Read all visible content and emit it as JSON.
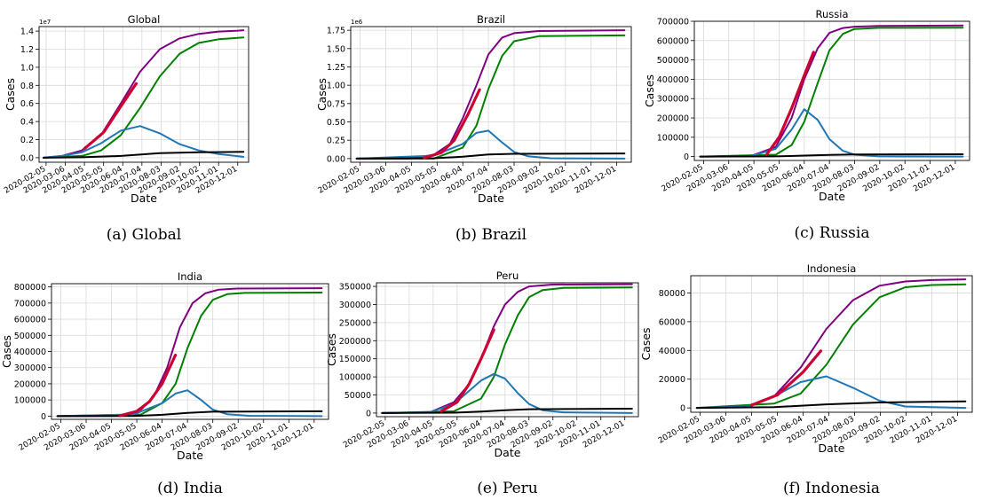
{
  "series_colors": {
    "total": "#800080",
    "recovered": "#008000",
    "active": "#1f77b4",
    "deaths": "#000000",
    "observed": "#cc0033"
  },
  "chart_data": [
    {
      "type": "line",
      "title": "Global",
      "caption": "(a) Global",
      "xlabel": "Date",
      "ylabel": "Cases",
      "scale_note": "1e7",
      "ylim": [
        -0.05,
        1.45
      ],
      "y_ticks": [
        "0.0",
        "0.2",
        "0.4",
        "0.6",
        "0.8",
        "1.0",
        "1.2",
        "1.4"
      ],
      "x_ticks": [
        "2020-02-05",
        "2020-03-06",
        "2020-04-05",
        "2020-05-05",
        "2020-06-04",
        "2020-07-04",
        "2020-08-03",
        "2020-09-02",
        "2020-10-02",
        "2020-11-01",
        "2020-12-01"
      ],
      "grid": true,
      "series": [
        {
          "key": "total",
          "x": [
            "2020-02-01",
            "2020-03-01",
            "2020-04-01",
            "2020-05-01",
            "2020-06-01",
            "2020-07-01",
            "2020-08-01",
            "2020-09-01",
            "2020-10-01",
            "2020-11-01",
            "2020-12-01",
            "2020-12-10"
          ],
          "values": [
            0.0,
            0.02,
            0.08,
            0.25,
            0.6,
            0.95,
            1.2,
            1.32,
            1.37,
            1.395,
            1.405,
            1.41
          ]
        },
        {
          "key": "recovered",
          "x": [
            "2020-02-01",
            "2020-04-01",
            "2020-05-01",
            "2020-06-01",
            "2020-07-01",
            "2020-08-01",
            "2020-09-01",
            "2020-10-01",
            "2020-11-01",
            "2020-12-10"
          ],
          "values": [
            0.0,
            0.02,
            0.08,
            0.25,
            0.55,
            0.9,
            1.15,
            1.27,
            1.31,
            1.33
          ]
        },
        {
          "key": "active",
          "x": [
            "2020-02-01",
            "2020-03-01",
            "2020-04-01",
            "2020-05-01",
            "2020-06-01",
            "2020-07-01",
            "2020-08-01",
            "2020-09-01",
            "2020-10-01",
            "2020-11-01",
            "2020-12-10"
          ],
          "values": [
            0.0,
            0.02,
            0.06,
            0.16,
            0.3,
            0.35,
            0.27,
            0.15,
            0.08,
            0.04,
            0.01
          ]
        },
        {
          "key": "deaths",
          "x": [
            "2020-02-01",
            "2020-04-01",
            "2020-06-01",
            "2020-08-01",
            "2020-10-01",
            "2020-12-10"
          ],
          "values": [
            0.0,
            0.005,
            0.02,
            0.05,
            0.06,
            0.065
          ]
        },
        {
          "key": "observed",
          "x": [
            "2020-04-05",
            "2020-05-05",
            "2020-06-04",
            "2020-06-25"
          ],
          "values": [
            0.1,
            0.28,
            0.6,
            0.82
          ]
        }
      ]
    },
    {
      "type": "line",
      "title": "Brazil",
      "caption": "(b) Brazil",
      "xlabel": "Date",
      "ylabel": "Cases",
      "scale_note": "1e6",
      "ylim": [
        -0.05,
        1.8
      ],
      "y_ticks": [
        "0.00",
        "0.25",
        "0.50",
        "0.75",
        "1.00",
        "1.25",
        "1.50",
        "1.75"
      ],
      "x_ticks": [
        "2020-02-05",
        "2020-03-06",
        "2020-04-05",
        "2020-05-05",
        "2020-06-04",
        "2020-07-04",
        "2020-08-03",
        "2020-09-02",
        "2020-10-02",
        "2020-11-01",
        "2020-12-01"
      ],
      "grid": true,
      "series": [
        {
          "key": "total",
          "x": [
            "2020-02-01",
            "2020-04-01",
            "2020-05-01",
            "2020-05-20",
            "2020-06-04",
            "2020-06-20",
            "2020-07-04",
            "2020-07-20",
            "2020-08-03",
            "2020-09-01",
            "2020-12-10"
          ],
          "values": [
            0.0,
            0.0,
            0.05,
            0.2,
            0.55,
            1.0,
            1.42,
            1.65,
            1.71,
            1.74,
            1.75
          ]
        },
        {
          "key": "recovered",
          "x": [
            "2020-02-01",
            "2020-05-01",
            "2020-06-04",
            "2020-06-20",
            "2020-07-04",
            "2020-07-20",
            "2020-08-03",
            "2020-09-01",
            "2020-12-10"
          ],
          "values": [
            0.0,
            0.0,
            0.15,
            0.45,
            0.95,
            1.4,
            1.6,
            1.67,
            1.68
          ]
        },
        {
          "key": "active",
          "x": [
            "2020-02-01",
            "2020-05-01",
            "2020-06-04",
            "2020-06-20",
            "2020-07-04",
            "2020-07-20",
            "2020-08-03",
            "2020-08-20",
            "2020-09-15",
            "2020-12-10"
          ],
          "values": [
            0.0,
            0.04,
            0.2,
            0.35,
            0.38,
            0.22,
            0.09,
            0.03,
            0.005,
            0.0
          ]
        },
        {
          "key": "deaths",
          "x": [
            "2020-02-01",
            "2020-05-01",
            "2020-06-04",
            "2020-07-04",
            "2020-08-03",
            "2020-12-10"
          ],
          "values": [
            0.0,
            0.005,
            0.025,
            0.055,
            0.065,
            0.07
          ]
        },
        {
          "key": "observed",
          "x": [
            "2020-04-20",
            "2020-05-10",
            "2020-05-25",
            "2020-06-10",
            "2020-06-24"
          ],
          "values": [
            0.01,
            0.08,
            0.25,
            0.6,
            0.95
          ]
        }
      ]
    },
    {
      "type": "line",
      "title": "Russia",
      "caption": "(c) Russia",
      "xlabel": "Date",
      "ylabel": "Cases",
      "ylim": [
        -20000,
        700000
      ],
      "y_ticks": [
        "0",
        "100000",
        "200000",
        "300000",
        "400000",
        "500000",
        "600000",
        "700000"
      ],
      "x_ticks": [
        "2020-02-05",
        "2020-03-06",
        "2020-04-05",
        "2020-05-05",
        "2020-06-04",
        "2020-07-04",
        "2020-08-03",
        "2020-09-02",
        "2020-10-02",
        "2020-11-01",
        "2020-12-01"
      ],
      "grid": true,
      "series": [
        {
          "key": "total",
          "x": [
            "2020-02-01",
            "2020-04-01",
            "2020-05-01",
            "2020-05-20",
            "2020-06-04",
            "2020-06-20",
            "2020-07-04",
            "2020-07-20",
            "2020-08-03",
            "2020-09-01",
            "2020-12-10"
          ],
          "values": [
            0,
            2000,
            50000,
            200000,
            400000,
            560000,
            640000,
            665000,
            672000,
            676000,
            678000
          ]
        },
        {
          "key": "recovered",
          "x": [
            "2020-02-01",
            "2020-05-01",
            "2020-05-20",
            "2020-06-04",
            "2020-06-20",
            "2020-07-04",
            "2020-07-20",
            "2020-08-03",
            "2020-09-01",
            "2020-12-10"
          ],
          "values": [
            0,
            10000,
            60000,
            180000,
            380000,
            550000,
            635000,
            660000,
            666000,
            667000
          ]
        },
        {
          "key": "active",
          "x": [
            "2020-02-01",
            "2020-04-01",
            "2020-05-01",
            "2020-05-20",
            "2020-06-04",
            "2020-06-20",
            "2020-07-04",
            "2020-07-20",
            "2020-08-03",
            "2020-09-01",
            "2020-12-10"
          ],
          "values": [
            0,
            2000,
            40000,
            140000,
            245000,
            190000,
            90000,
            30000,
            10000,
            1000,
            0
          ]
        },
        {
          "key": "deaths",
          "x": [
            "2020-02-01",
            "2020-05-01",
            "2020-06-04",
            "2020-07-04",
            "2020-08-03",
            "2020-12-10"
          ],
          "values": [
            0,
            1000,
            5000,
            9000,
            11000,
            12000
          ]
        },
        {
          "key": "observed",
          "x": [
            "2020-04-20",
            "2020-05-05",
            "2020-05-20",
            "2020-06-04",
            "2020-06-15"
          ],
          "values": [
            10000,
            100000,
            250000,
            420000,
            540000
          ]
        }
      ]
    },
    {
      "type": "line",
      "title": "India",
      "caption": "(d) India",
      "xlabel": "Date",
      "ylabel": "Cases",
      "ylim": [
        -20000,
        820000
      ],
      "y_ticks": [
        "0",
        "100000",
        "200000",
        "300000",
        "400000",
        "500000",
        "600000",
        "700000",
        "800000"
      ],
      "x_ticks": [
        "2020-02-05",
        "2020-03-06",
        "2020-04-05",
        "2020-05-05",
        "2020-06-04",
        "2020-07-04",
        "2020-08-03",
        "2020-09-02",
        "2020-10-02",
        "2020-11-01",
        "2020-12-01"
      ],
      "grid": true,
      "series": [
        {
          "key": "total",
          "x": [
            "2020-02-01",
            "2020-04-20",
            "2020-05-10",
            "2020-05-25",
            "2020-06-10",
            "2020-06-25",
            "2020-07-10",
            "2020-07-25",
            "2020-08-10",
            "2020-09-01",
            "2020-12-10"
          ],
          "values": [
            0,
            2000,
            40000,
            120000,
            300000,
            550000,
            700000,
            760000,
            783000,
            790000,
            792000
          ]
        },
        {
          "key": "recovered",
          "x": [
            "2020-02-01",
            "2020-05-10",
            "2020-06-04",
            "2020-06-20",
            "2020-07-04",
            "2020-07-20",
            "2020-08-03",
            "2020-08-20",
            "2020-09-10",
            "2020-12-10"
          ],
          "values": [
            0,
            10000,
            80000,
            200000,
            420000,
            620000,
            720000,
            755000,
            763000,
            765000
          ]
        },
        {
          "key": "active",
          "x": [
            "2020-02-01",
            "2020-05-01",
            "2020-06-04",
            "2020-06-20",
            "2020-07-04",
            "2020-07-20",
            "2020-08-03",
            "2020-08-20",
            "2020-09-15",
            "2020-12-10"
          ],
          "values": [
            0,
            10000,
            80000,
            140000,
            160000,
            100000,
            40000,
            12000,
            2000,
            0
          ]
        },
        {
          "key": "deaths",
          "x": [
            "2020-02-01",
            "2020-05-01",
            "2020-06-04",
            "2020-07-04",
            "2020-08-03",
            "2020-12-10"
          ],
          "values": [
            0,
            1000,
            8000,
            20000,
            27000,
            30000
          ]
        },
        {
          "key": "observed",
          "x": [
            "2020-04-15",
            "2020-05-05",
            "2020-05-20",
            "2020-06-04",
            "2020-06-20"
          ],
          "values": [
            2000,
            30000,
            90000,
            200000,
            380000
          ]
        }
      ]
    },
    {
      "type": "line",
      "title": "Peru",
      "caption": "(e) Peru",
      "xlabel": "Date",
      "ylabel": "Cases",
      "ylim": [
        -10000,
        360000
      ],
      "y_ticks": [
        "0",
        "50000",
        "100000",
        "150000",
        "200000",
        "250000",
        "300000",
        "350000"
      ],
      "x_ticks": [
        "2020-02-05",
        "2020-03-06",
        "2020-04-05",
        "2020-05-05",
        "2020-06-04",
        "2020-07-04",
        "2020-08-03",
        "2020-09-02",
        "2020-10-02",
        "2020-11-01",
        "2020-12-01"
      ],
      "grid": true,
      "series": [
        {
          "key": "total",
          "x": [
            "2020-02-01",
            "2020-04-01",
            "2020-05-01",
            "2020-05-20",
            "2020-06-04",
            "2020-06-20",
            "2020-07-04",
            "2020-07-20",
            "2020-08-03",
            "2020-09-01",
            "2020-12-10"
          ],
          "values": [
            0,
            2000,
            30000,
            80000,
            150000,
            240000,
            300000,
            335000,
            350000,
            355000,
            356000
          ]
        },
        {
          "key": "recovered",
          "x": [
            "2020-02-01",
            "2020-05-01",
            "2020-06-04",
            "2020-06-20",
            "2020-07-04",
            "2020-07-20",
            "2020-08-03",
            "2020-08-20",
            "2020-09-15",
            "2020-12-10"
          ],
          "values": [
            0,
            5000,
            40000,
            100000,
            190000,
            270000,
            320000,
            340000,
            346000,
            347000
          ]
        },
        {
          "key": "active",
          "x": [
            "2020-02-01",
            "2020-04-01",
            "2020-05-01",
            "2020-06-04",
            "2020-06-20",
            "2020-07-04",
            "2020-07-20",
            "2020-08-03",
            "2020-08-20",
            "2020-09-15",
            "2020-12-10"
          ],
          "values": [
            0,
            2000,
            25000,
            90000,
            108000,
            95000,
            55000,
            25000,
            8000,
            2000,
            0
          ]
        },
        {
          "key": "deaths",
          "x": [
            "2020-02-01",
            "2020-05-01",
            "2020-06-04",
            "2020-07-04",
            "2020-08-03",
            "2020-12-10"
          ],
          "values": [
            0,
            1000,
            4000,
            8000,
            10500,
            12000
          ]
        },
        {
          "key": "observed",
          "x": [
            "2020-04-15",
            "2020-05-05",
            "2020-05-20",
            "2020-06-04",
            "2020-06-20"
          ],
          "values": [
            5000,
            30000,
            80000,
            150000,
            230000
          ]
        }
      ]
    },
    {
      "type": "line",
      "title": "Indonesia",
      "caption": "(f) Indonesia",
      "xlabel": "Date",
      "ylabel": "Cases",
      "ylim": [
        -3000,
        92000
      ],
      "y_ticks": [
        "0",
        "20000",
        "40000",
        "60000",
        "80000"
      ],
      "x_ticks": [
        "2020-02-05",
        "2020-03-06",
        "2020-04-05",
        "2020-05-05",
        "2020-06-04",
        "2020-07-04",
        "2020-08-03",
        "2020-09-02",
        "2020-10-02",
        "2020-11-01",
        "2020-12-01"
      ],
      "grid": true,
      "series": [
        {
          "key": "total",
          "x": [
            "2020-02-01",
            "2020-04-01",
            "2020-05-01",
            "2020-06-01",
            "2020-07-01",
            "2020-08-01",
            "2020-09-01",
            "2020-10-01",
            "2020-11-01",
            "2020-12-10"
          ],
          "values": [
            0,
            1000,
            8000,
            28000,
            55000,
            75000,
            85000,
            88000,
            89000,
            89500
          ]
        },
        {
          "key": "recovered",
          "x": [
            "2020-02-01",
            "2020-05-01",
            "2020-06-01",
            "2020-07-01",
            "2020-08-01",
            "2020-09-01",
            "2020-10-01",
            "2020-11-01",
            "2020-12-10"
          ],
          "values": [
            0,
            3000,
            10000,
            30000,
            58000,
            77000,
            84000,
            85500,
            86000
          ]
        },
        {
          "key": "active",
          "x": [
            "2020-02-01",
            "2020-04-01",
            "2020-05-01",
            "2020-06-01",
            "2020-07-01",
            "2020-08-01",
            "2020-09-01",
            "2020-10-01",
            "2020-12-10"
          ],
          "values": [
            0,
            1000,
            8000,
            18000,
            22000,
            14000,
            5000,
            1000,
            0
          ]
        },
        {
          "key": "deaths",
          "x": [
            "2020-02-01",
            "2020-05-01",
            "2020-07-01",
            "2020-09-01",
            "2020-12-10"
          ],
          "values": [
            0,
            500,
            2500,
            3800,
            4500
          ]
        },
        {
          "key": "observed",
          "x": [
            "2020-04-05",
            "2020-05-05",
            "2020-06-04",
            "2020-06-25"
          ],
          "values": [
            2000,
            9000,
            25000,
            40000
          ]
        }
      ]
    }
  ]
}
